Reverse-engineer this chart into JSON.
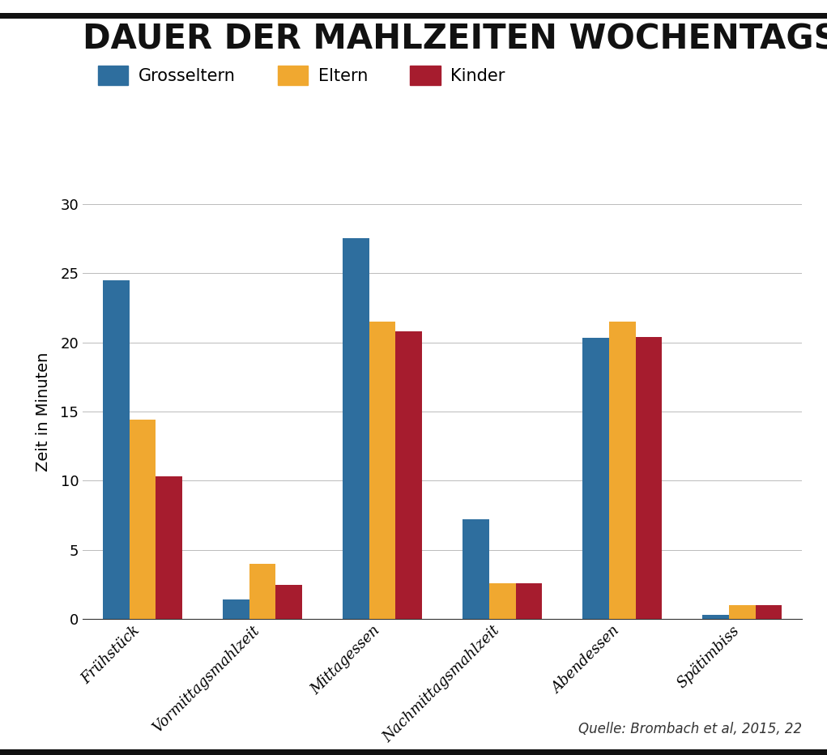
{
  "title": "DAUER DER MAHLZEITEN WOCHENTAGS",
  "categories": [
    "Frühstück",
    "Vormittagsmahlzeit",
    "Mittagessen",
    "Nachmittagsmahlzeit",
    "Abendessen",
    "Spätimbiss"
  ],
  "series": {
    "Grosseltern": [
      24.5,
      1.4,
      27.5,
      7.2,
      20.3,
      0.3
    ],
    "Eltern": [
      14.4,
      4.0,
      21.5,
      2.6,
      21.5,
      1.0
    ],
    "Kinder": [
      10.3,
      2.5,
      20.8,
      2.6,
      20.4,
      1.0
    ]
  },
  "colors": {
    "Grosseltern": "#2e6e9e",
    "Eltern": "#f0a830",
    "Kinder": "#a61c2e"
  },
  "ylabel": "Zeit in Minuten",
  "ylim": [
    0,
    30
  ],
  "yticks": [
    0,
    5,
    10,
    15,
    20,
    25,
    30
  ],
  "source": "Quelle: Brombach et al, 2015, 22",
  "title_fontsize": 30,
  "legend_fontsize": 15,
  "ylabel_fontsize": 14,
  "tick_fontsize": 13,
  "source_fontsize": 12,
  "bar_width": 0.22
}
